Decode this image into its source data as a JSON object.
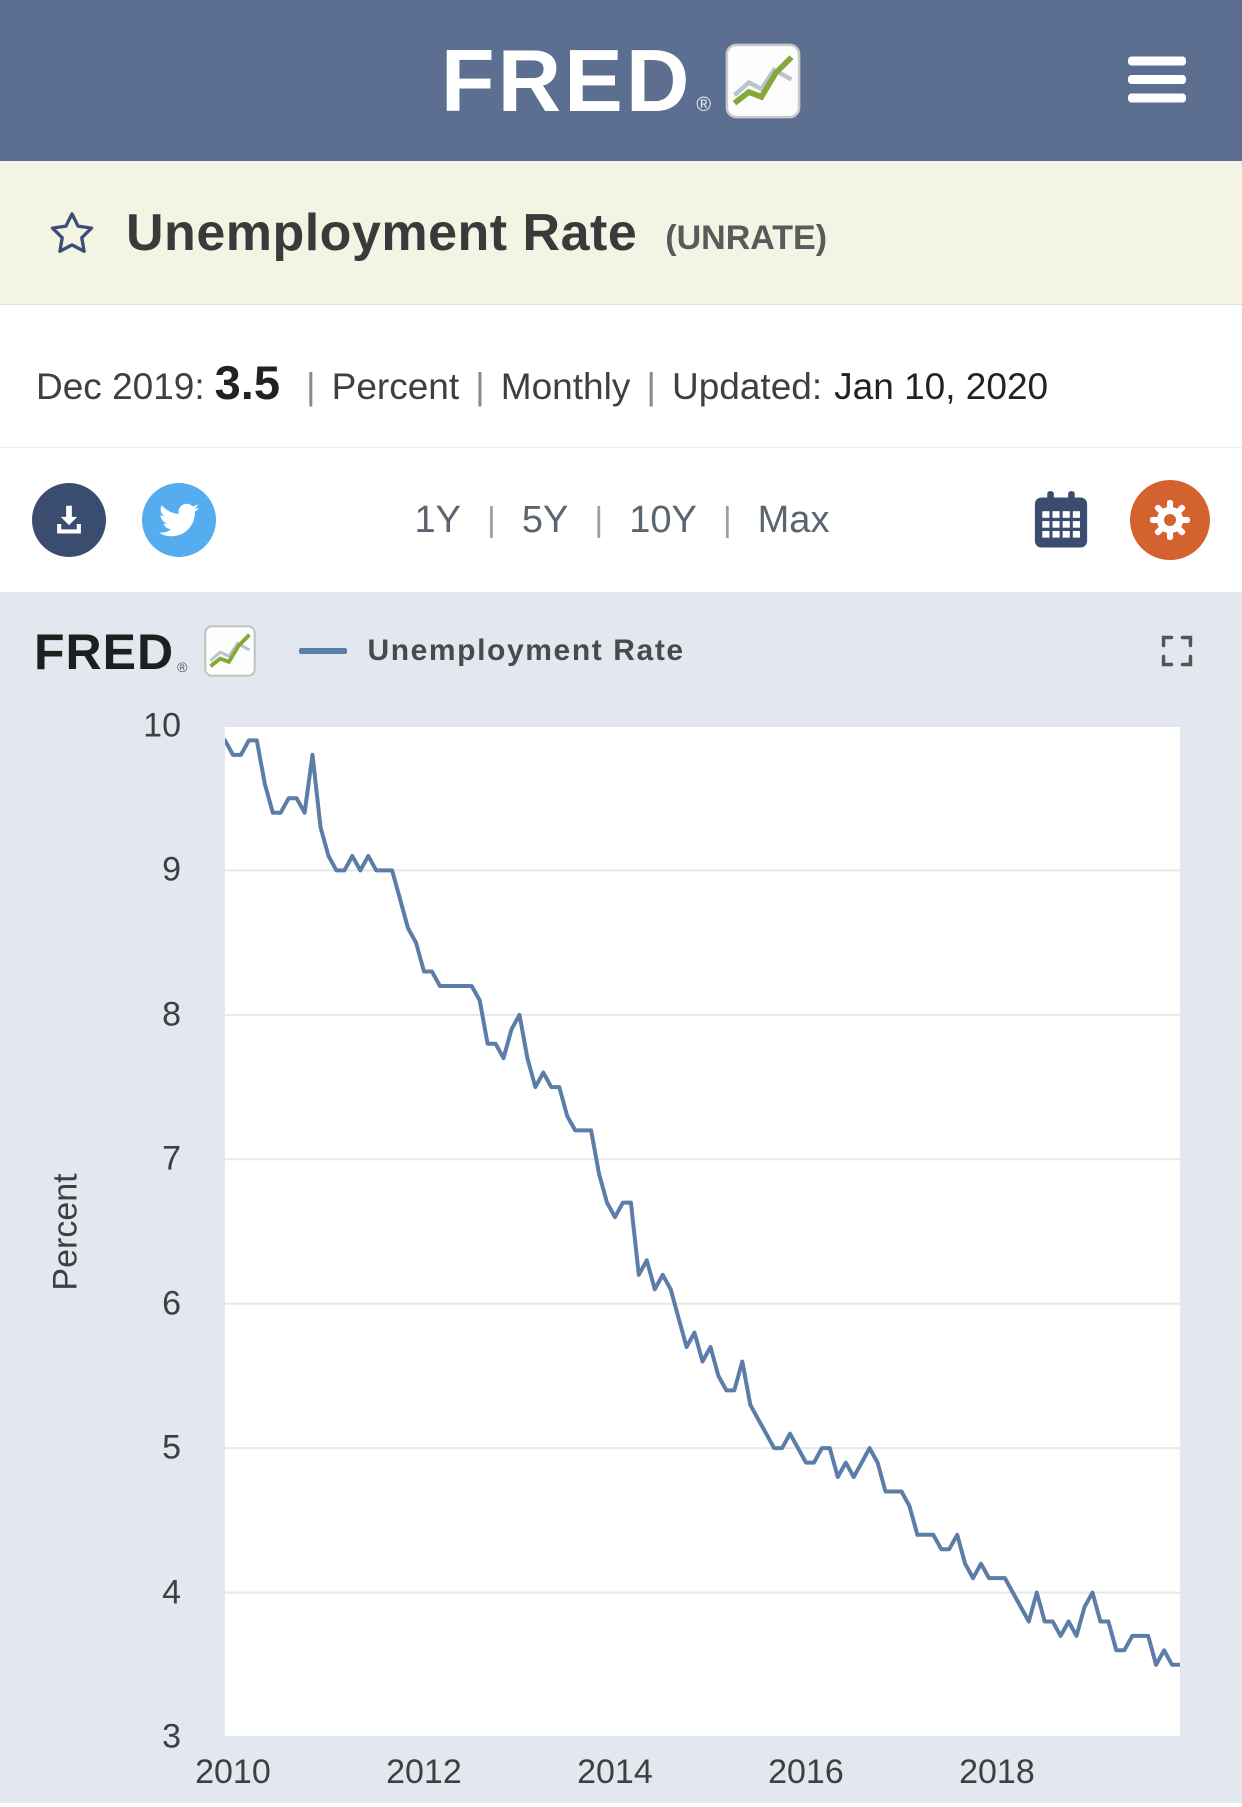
{
  "colors": {
    "header_bg": "#5d6f91",
    "title_bg": "#f4f4e4",
    "chart_bg": "#e3e7ef",
    "line": "#5b7da7",
    "navy": "#3a4d6e",
    "twitter_blue": "#55acee",
    "gear_orange": "#d4622f"
  },
  "header": {
    "logo_text": "FRED",
    "registered_mark": "®",
    "menu_icon": "hamburger-icon",
    "logo_chart_icon": "fred-logo-chart-icon"
  },
  "title_bar": {
    "favorite_icon": "star-icon",
    "title": "Unemployment Rate",
    "series_id": "(UNRATE)"
  },
  "summary": {
    "date_label": "Dec 2019:",
    "value": "3.5",
    "separator": "|",
    "units": "Percent",
    "frequency": "Monthly",
    "updated_label": "Updated:",
    "updated_date": "Jan 10, 2020"
  },
  "toolbar": {
    "download_icon": "download-icon",
    "share_icon": "twitter-bird-icon",
    "calendar_icon": "calendar-icon",
    "settings_icon": "gear-icon",
    "separator": "|",
    "ranges": [
      "1Y",
      "5Y",
      "10Y",
      "Max"
    ]
  },
  "chart_header": {
    "logo_text": "FRED",
    "registered_mark": "®",
    "legend_label": "Unemployment Rate",
    "fullscreen_icon": "fullscreen-icon"
  },
  "chart_data": {
    "type": "line",
    "title": "Unemployment Rate",
    "ylabel": "Percent",
    "ylim": [
      3,
      10
    ],
    "yticks": [
      3,
      4,
      5,
      6,
      7,
      8,
      9,
      10
    ],
    "xticks": [
      2010,
      2012,
      2014,
      2016,
      2018
    ],
    "x_start": "2009-12",
    "x_end": "2019-12",
    "x_start_year": 2009.917,
    "x_end_year": 2019.917,
    "frequency": "Monthly",
    "grid": true,
    "legend_position": "top",
    "series": [
      {
        "name": "Unemployment Rate",
        "color": "#5b7da7",
        "values": [
          9.9,
          9.8,
          9.8,
          9.9,
          9.9,
          9.6,
          9.4,
          9.4,
          9.5,
          9.5,
          9.4,
          9.8,
          9.3,
          9.1,
          9.0,
          9.0,
          9.1,
          9.0,
          9.1,
          9.0,
          9.0,
          9.0,
          8.8,
          8.6,
          8.5,
          8.3,
          8.3,
          8.2,
          8.2,
          8.2,
          8.2,
          8.2,
          8.1,
          7.8,
          7.8,
          7.7,
          7.9,
          8.0,
          7.7,
          7.5,
          7.6,
          7.5,
          7.5,
          7.3,
          7.2,
          7.2,
          7.2,
          6.9,
          6.7,
          6.6,
          6.7,
          6.7,
          6.2,
          6.3,
          6.1,
          6.2,
          6.1,
          5.9,
          5.7,
          5.8,
          5.6,
          5.7,
          5.5,
          5.4,
          5.4,
          5.6,
          5.3,
          5.2,
          5.1,
          5.0,
          5.0,
          5.1,
          5.0,
          4.9,
          4.9,
          5.0,
          5.0,
          4.8,
          4.9,
          4.8,
          4.9,
          5.0,
          4.9,
          4.7,
          4.7,
          4.7,
          4.6,
          4.4,
          4.4,
          4.4,
          4.3,
          4.3,
          4.4,
          4.2,
          4.1,
          4.2,
          4.1,
          4.1,
          4.1,
          4.0,
          3.9,
          3.8,
          4.0,
          3.8,
          3.8,
          3.7,
          3.8,
          3.7,
          3.9,
          4.0,
          3.8,
          3.8,
          3.6,
          3.6,
          3.7,
          3.7,
          3.7,
          3.5,
          3.6,
          3.5,
          3.5
        ]
      }
    ]
  }
}
